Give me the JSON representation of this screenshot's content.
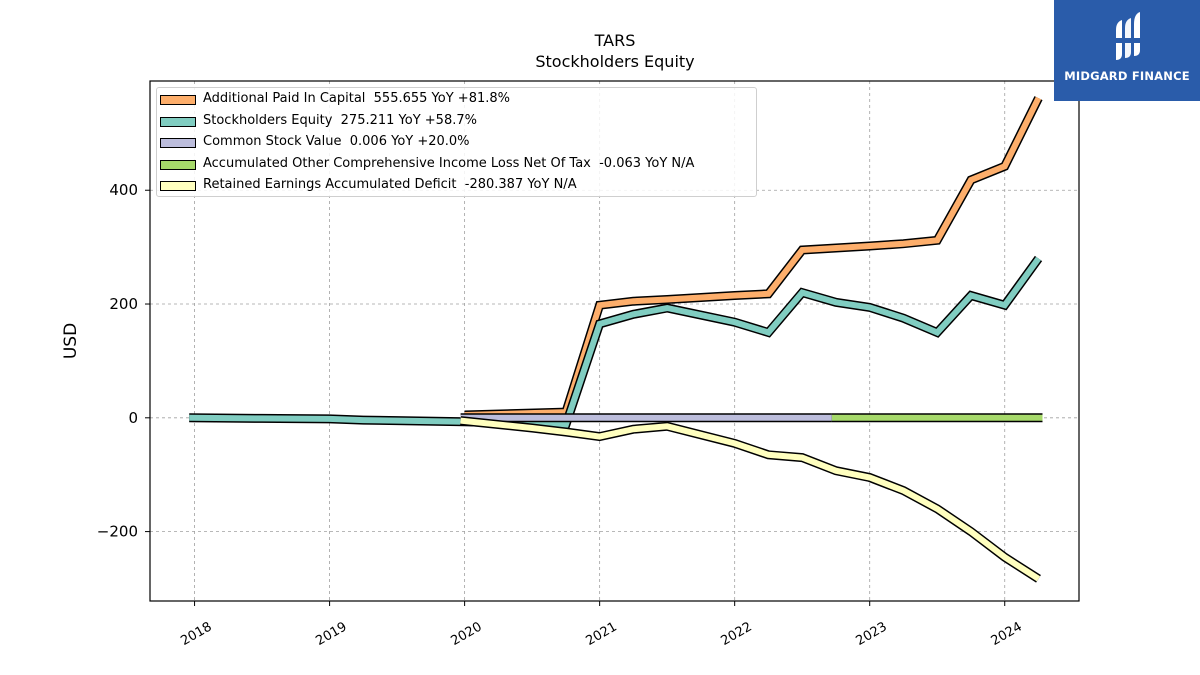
{
  "header": {
    "ticker": "TARS",
    "subtitle": "Stockholders  Equity"
  },
  "logo": {
    "text": "MIDGARD FINANCE",
    "icon": "midgard-logo-icon",
    "bg_color": "#2a5caa"
  },
  "chart_data": {
    "type": "line",
    "title": "TARS",
    "subtitle": "Stockholders  Equity",
    "xlabel": "",
    "ylabel": "USD",
    "xlim": [
      2017.67,
      2024.55
    ],
    "ylim": [
      -322,
      592
    ],
    "x_ticks": [
      "2018",
      "2019",
      "2020",
      "2021",
      "2022",
      "2023",
      "2024"
    ],
    "y_ticks": [
      -200,
      0,
      200,
      400
    ],
    "y_tick_labels": [
      "−200",
      "0",
      "200",
      "400"
    ],
    "grid": true,
    "legend_position": "top-left",
    "series": [
      {
        "name": "Additional Paid In Capital",
        "legend": "Additional Paid In Capital  555.655 YoY +81.8%",
        "color": "#fdae6b",
        "points": [
          [
            2020.0,
            5
          ],
          [
            2020.75,
            10
          ],
          [
            2021.0,
            198
          ],
          [
            2021.25,
            205
          ],
          [
            2021.5,
            208
          ],
          [
            2022.0,
            215
          ],
          [
            2022.25,
            218
          ],
          [
            2022.5,
            295
          ],
          [
            2023.0,
            302
          ],
          [
            2023.25,
            306
          ],
          [
            2023.5,
            312
          ],
          [
            2023.75,
            418
          ],
          [
            2024.0,
            442
          ],
          [
            2024.25,
            562
          ]
        ]
      },
      {
        "name": "Stockholders Equity",
        "legend": "Stockholders Equity  275.211 YoY +58.7%",
        "color": "#80cdc1",
        "points": [
          [
            2017.96,
            0
          ],
          [
            2018.5,
            -1
          ],
          [
            2019.0,
            -2
          ],
          [
            2019.25,
            -4
          ],
          [
            2019.5,
            -5
          ],
          [
            2020.0,
            -7
          ],
          [
            2020.5,
            -10
          ],
          [
            2020.75,
            -12
          ],
          [
            2021.0,
            165
          ],
          [
            2021.25,
            182
          ],
          [
            2021.5,
            193
          ],
          [
            2022.0,
            168
          ],
          [
            2022.25,
            150
          ],
          [
            2022.5,
            220
          ],
          [
            2022.75,
            203
          ],
          [
            2023.0,
            194
          ],
          [
            2023.25,
            175
          ],
          [
            2023.5,
            150
          ],
          [
            2023.75,
            215
          ],
          [
            2024.0,
            198
          ],
          [
            2024.25,
            280
          ]
        ]
      },
      {
        "name": "Common Stock Value",
        "legend": "Common Stock Value  0.006 YoY +20.0%",
        "color": "#bcbddc",
        "points": [
          [
            2019.97,
            0
          ],
          [
            2022.72,
            0
          ]
        ]
      },
      {
        "name": "Accumulated Other Comprehensive Income Loss Net Of Tax",
        "legend": "Accumulated Other Comprehensive Income Loss Net Of Tax  -0.063 YoY N/A",
        "color": "#a6d96a",
        "points": [
          [
            2022.72,
            0
          ],
          [
            2024.28,
            0
          ]
        ]
      },
      {
        "name": "Retained Earnings Accumulated Deficit",
        "legend": "Retained Earnings Accumulated Deficit  -280.387 YoY N/A",
        "color": "#ffffbf",
        "points": [
          [
            2019.97,
            -5
          ],
          [
            2020.5,
            -18
          ],
          [
            2020.75,
            -25
          ],
          [
            2021.0,
            -33
          ],
          [
            2021.25,
            -20
          ],
          [
            2021.5,
            -15
          ],
          [
            2022.0,
            -45
          ],
          [
            2022.25,
            -65
          ],
          [
            2022.5,
            -70
          ],
          [
            2022.75,
            -93
          ],
          [
            2023.0,
            -105
          ],
          [
            2023.25,
            -128
          ],
          [
            2023.5,
            -160
          ],
          [
            2023.75,
            -200
          ],
          [
            2024.0,
            -245
          ],
          [
            2024.25,
            -283
          ]
        ]
      }
    ]
  }
}
